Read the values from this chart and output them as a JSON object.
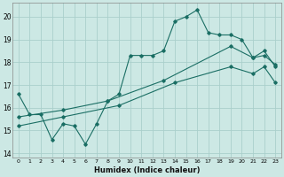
{
  "xlabel": "Humidex (Indice chaleur)",
  "xlim": [
    -0.5,
    23.5
  ],
  "ylim": [
    13.8,
    20.6
  ],
  "yticks": [
    14,
    15,
    16,
    17,
    18,
    19,
    20
  ],
  "background_color": "#cce8e4",
  "grid_color": "#aacfcb",
  "line_color": "#1a6e64",
  "line1_x": [
    0,
    1,
    2,
    3,
    4,
    5,
    6,
    7,
    8,
    9,
    10,
    11,
    12,
    13,
    14,
    15,
    16,
    17,
    18,
    19,
    20,
    21,
    22,
    23
  ],
  "line1_y": [
    16.6,
    15.7,
    15.7,
    14.6,
    15.3,
    15.2,
    14.4,
    15.3,
    16.3,
    16.6,
    18.3,
    18.3,
    18.3,
    18.5,
    19.8,
    20.0,
    20.3,
    19.3,
    19.2,
    19.2,
    19.0,
    18.2,
    18.3,
    17.9
  ],
  "line2_x": [
    0,
    4,
    8,
    13,
    19,
    21,
    22,
    23
  ],
  "line2_y": [
    15.6,
    15.9,
    16.3,
    17.2,
    18.7,
    18.2,
    18.5,
    17.8
  ],
  "line3_x": [
    0,
    4,
    9,
    14,
    19,
    21,
    22,
    23
  ],
  "line3_y": [
    15.2,
    15.6,
    16.1,
    17.1,
    17.8,
    17.5,
    17.8,
    17.1
  ],
  "xtick_labels": [
    "0",
    "1",
    "2",
    "3",
    "4",
    "5",
    "6",
    "7",
    "8",
    "9",
    "10",
    "11",
    "12",
    "13",
    "14",
    "15",
    "16",
    "17",
    "18",
    "19",
    "20",
    "21",
    "22",
    "23"
  ]
}
